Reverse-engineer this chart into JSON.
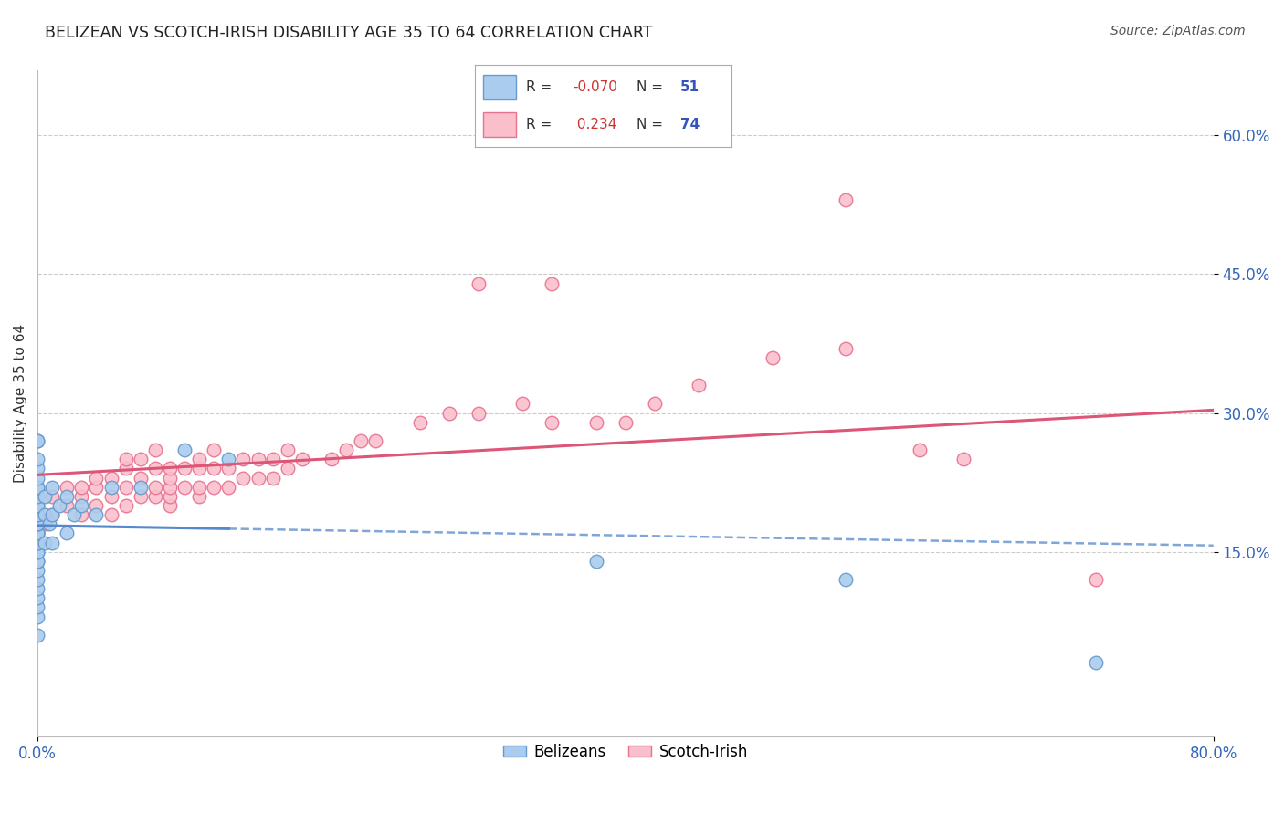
{
  "title": "BELIZEAN VS SCOTCH-IRISH DISABILITY AGE 35 TO 64 CORRELATION CHART",
  "source": "Source: ZipAtlas.com",
  "ylabel": "Disability Age 35 to 64",
  "xlim": [
    0.0,
    0.8
  ],
  "ylim": [
    -0.05,
    0.67
  ],
  "xticks": [
    0.0,
    0.8
  ],
  "xtick_labels": [
    "0.0%",
    "80.0%"
  ],
  "yticks": [
    0.15,
    0.3,
    0.45,
    0.6
  ],
  "ytick_labels": [
    "15.0%",
    "30.0%",
    "45.0%",
    "60.0%"
  ],
  "grid_color": "#cccccc",
  "background_color": "#ffffff",
  "belizean_color": "#aaccee",
  "scotch_color": "#f9c0cc",
  "belizean_edge": "#6699cc",
  "scotch_edge": "#e87090",
  "belizean_R": -0.07,
  "belizean_N": 51,
  "scotch_R": 0.234,
  "scotch_N": 74,
  "legend_label_belizean": "Belizeans",
  "legend_label_scotch": "Scotch-Irish",
  "reg_blue_color": "#5588cc",
  "reg_pink_color": "#dd5577",
  "belizean_x": [
    0.0,
    0.0,
    0.0,
    0.0,
    0.0,
    0.0,
    0.0,
    0.0,
    0.0,
    0.0,
    0.0,
    0.0,
    0.0,
    0.0,
    0.0,
    0.0,
    0.0,
    0.0,
    0.0,
    0.0,
    0.0,
    0.0,
    0.0,
    0.0,
    0.0,
    0.0,
    0.0,
    0.0,
    0.0,
    0.0,
    0.0,
    0.005,
    0.005,
    0.005,
    0.008,
    0.01,
    0.01,
    0.01,
    0.015,
    0.02,
    0.02,
    0.025,
    0.03,
    0.04,
    0.05,
    0.07,
    0.1,
    0.13,
    0.38,
    0.55,
    0.72
  ],
  "belizean_y": [
    0.06,
    0.08,
    0.09,
    0.1,
    0.11,
    0.12,
    0.13,
    0.14,
    0.14,
    0.15,
    0.15,
    0.16,
    0.16,
    0.17,
    0.17,
    0.17,
    0.18,
    0.18,
    0.18,
    0.19,
    0.19,
    0.2,
    0.2,
    0.21,
    0.22,
    0.22,
    0.23,
    0.24,
    0.25,
    0.27,
    0.27,
    0.16,
    0.19,
    0.21,
    0.18,
    0.16,
    0.19,
    0.22,
    0.2,
    0.17,
    0.21,
    0.19,
    0.2,
    0.19,
    0.22,
    0.22,
    0.26,
    0.25,
    0.14,
    0.12,
    0.03
  ],
  "scotch_x": [
    0.0,
    0.0,
    0.0,
    0.005,
    0.01,
    0.01,
    0.02,
    0.02,
    0.03,
    0.03,
    0.03,
    0.04,
    0.04,
    0.04,
    0.05,
    0.05,
    0.05,
    0.06,
    0.06,
    0.06,
    0.06,
    0.07,
    0.07,
    0.07,
    0.08,
    0.08,
    0.08,
    0.08,
    0.09,
    0.09,
    0.09,
    0.09,
    0.09,
    0.1,
    0.1,
    0.11,
    0.11,
    0.11,
    0.11,
    0.12,
    0.12,
    0.12,
    0.13,
    0.13,
    0.14,
    0.14,
    0.15,
    0.15,
    0.16,
    0.16,
    0.17,
    0.17,
    0.18,
    0.2,
    0.21,
    0.22,
    0.23,
    0.26,
    0.28,
    0.3,
    0.33,
    0.35,
    0.38,
    0.4,
    0.42,
    0.45,
    0.5,
    0.55,
    0.6,
    0.63,
    0.3,
    0.35,
    0.55,
    0.72
  ],
  "scotch_y": [
    0.17,
    0.18,
    0.19,
    0.18,
    0.19,
    0.21,
    0.2,
    0.22,
    0.19,
    0.21,
    0.22,
    0.2,
    0.22,
    0.23,
    0.19,
    0.21,
    0.23,
    0.2,
    0.22,
    0.24,
    0.25,
    0.21,
    0.23,
    0.25,
    0.21,
    0.22,
    0.24,
    0.26,
    0.2,
    0.21,
    0.22,
    0.23,
    0.24,
    0.22,
    0.24,
    0.21,
    0.22,
    0.24,
    0.25,
    0.22,
    0.24,
    0.26,
    0.22,
    0.24,
    0.23,
    0.25,
    0.23,
    0.25,
    0.23,
    0.25,
    0.24,
    0.26,
    0.25,
    0.25,
    0.26,
    0.27,
    0.27,
    0.29,
    0.3,
    0.3,
    0.31,
    0.29,
    0.29,
    0.29,
    0.31,
    0.33,
    0.36,
    0.37,
    0.26,
    0.25,
    0.44,
    0.44,
    0.53,
    0.12
  ]
}
